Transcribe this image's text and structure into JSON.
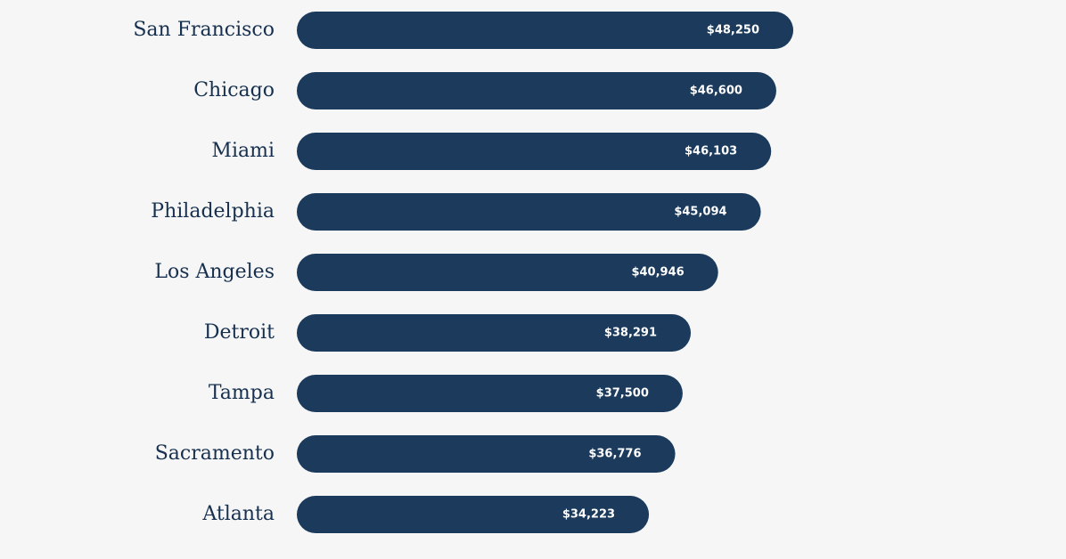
{
  "chart_data": {
    "type": "bar",
    "orientation": "horizontal",
    "categories": [
      "San Francisco",
      "Chicago",
      "Miami",
      "Philadelphia",
      "Los Angeles",
      "Detroit",
      "Tampa",
      "Sacramento",
      "Atlanta"
    ],
    "values": [
      48250,
      46600,
      46103,
      45094,
      40946,
      38291,
      37500,
      36776,
      34223
    ],
    "value_labels": [
      "$48,250",
      "$46,600",
      "$46,103",
      "$45,094",
      "$40,946",
      "$38,291",
      "$37,500",
      "$36,776",
      "$34,223"
    ],
    "color": "#1b3a5c"
  }
}
